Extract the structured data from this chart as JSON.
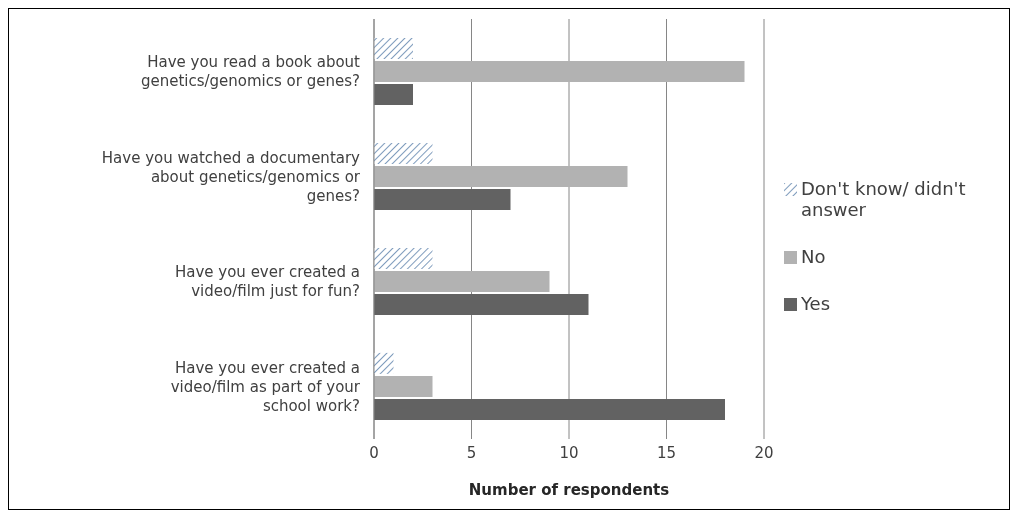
{
  "chart_data": {
    "type": "bar",
    "orientation": "horizontal",
    "xlabel": "Number of respondents",
    "categories": [
      "Have you read a book about genetics/genomics or genes?",
      "Have you watched a documentary about genetics/genomics or genes?",
      "Have you ever created a video/film just for fun?",
      "Have you ever created a video/film as part of your school work?"
    ],
    "series": [
      {
        "name": "Don't know/ didn't answer",
        "color": "#7f9cbd",
        "values": [
          2,
          3,
          3,
          1
        ]
      },
      {
        "name": "No",
        "color": "#b2b2b2",
        "values": [
          19,
          13,
          9,
          3
        ]
      },
      {
        "name": "Yes",
        "color": "#626262",
        "values": [
          2,
          7,
          11,
          18
        ]
      }
    ],
    "xlim": [
      0,
      20
    ],
    "xticks": [
      0,
      5,
      10,
      15,
      20
    ],
    "grid": "x",
    "legend": "right"
  }
}
